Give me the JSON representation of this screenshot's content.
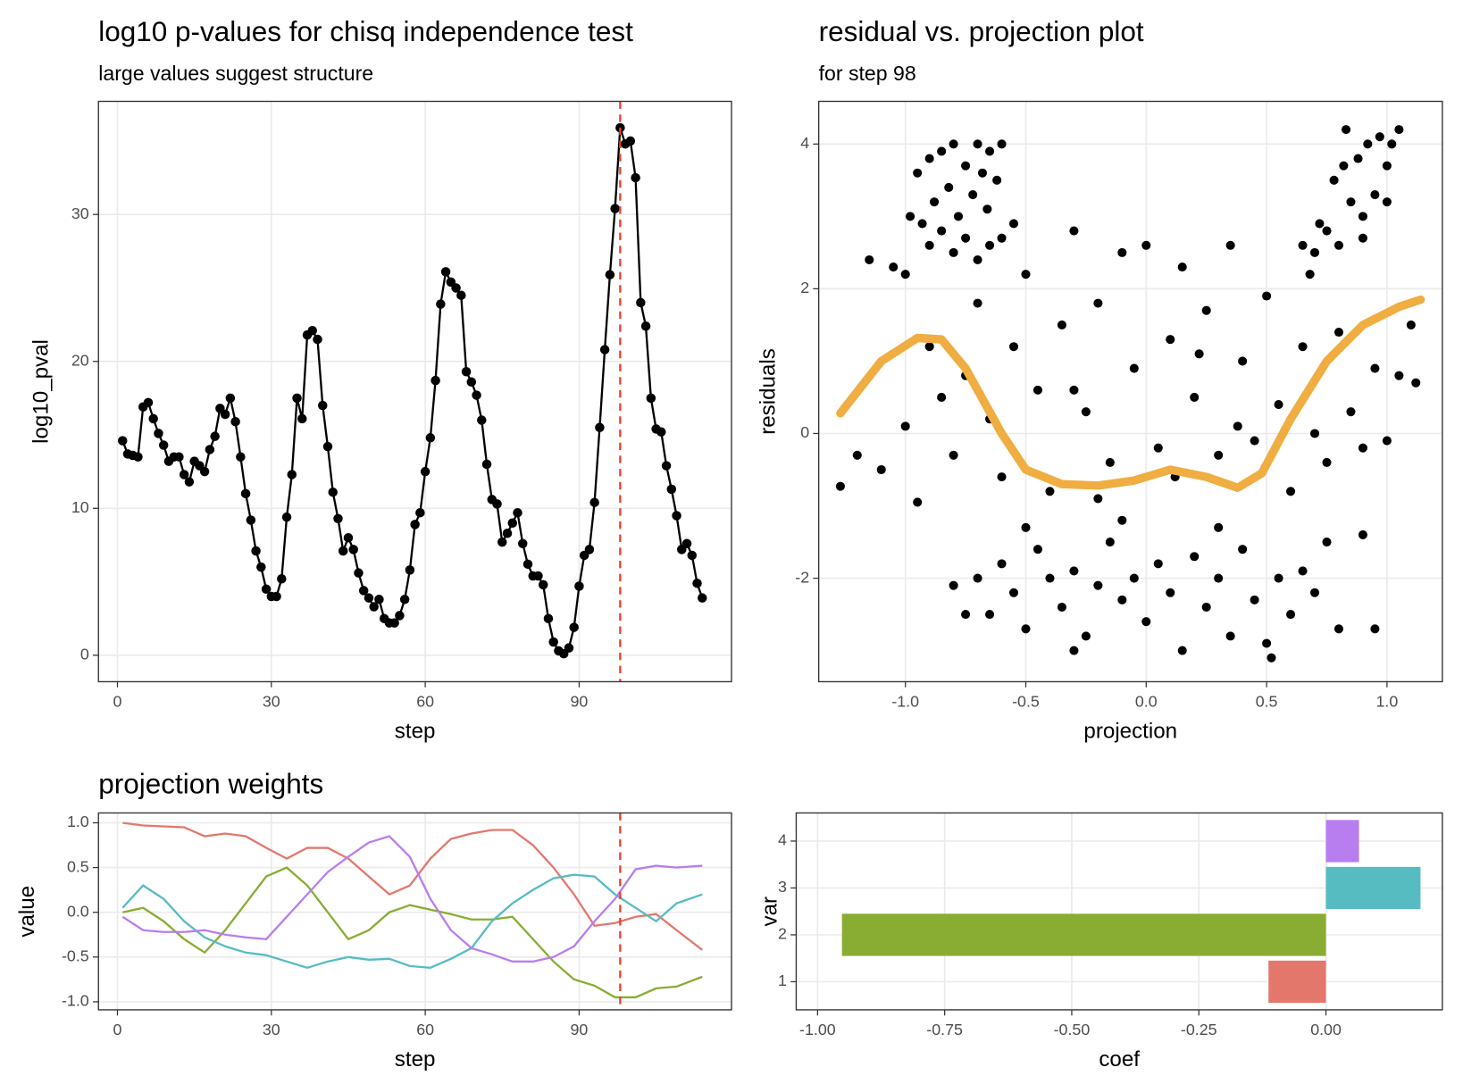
{
  "chart_data": [
    {
      "type": "line",
      "title": "log10 p-values for chisq independence test",
      "subtitle": "large values suggest structure",
      "x_label": "step",
      "y_label": "log10_pval",
      "color": "#000000",
      "markers": true,
      "grid": true,
      "vline": 98,
      "vline_color": "#e8412c",
      "x": [
        1,
        2,
        3,
        4,
        5,
        6,
        7,
        8,
        9,
        10,
        11,
        12,
        13,
        14,
        15,
        16,
        17,
        18,
        19,
        20,
        21,
        22,
        23,
        24,
        25,
        26,
        27,
        28,
        29,
        30,
        31,
        32,
        33,
        34,
        35,
        36,
        37,
        38,
        39,
        40,
        41,
        42,
        43,
        44,
        45,
        46,
        47,
        48,
        49,
        50,
        51,
        52,
        53,
        54,
        55,
        56,
        57,
        58,
        59,
        60,
        61,
        62,
        63,
        64,
        65,
        66,
        67,
        68,
        69,
        70,
        71,
        72,
        73,
        74,
        75,
        76,
        77,
        78,
        79,
        80,
        81,
        82,
        83,
        84,
        85,
        86,
        87,
        88,
        89,
        90,
        91,
        92,
        93,
        94,
        95,
        96,
        97,
        98,
        99,
        100,
        101,
        102,
        103,
        104,
        105,
        106,
        107,
        108,
        109,
        110,
        111,
        112,
        113,
        114
      ],
      "values": [
        14.6,
        13.7,
        13.6,
        13.5,
        16.9,
        17.2,
        16.1,
        15.1,
        14.3,
        13.2,
        13.5,
        13.5,
        12.3,
        11.8,
        13.2,
        12.9,
        12.5,
        14.0,
        14.9,
        16.8,
        16.4,
        17.5,
        15.9,
        13.5,
        11.0,
        9.2,
        7.1,
        6.0,
        4.5,
        4.0,
        4.0,
        5.2,
        9.4,
        12.3,
        17.5,
        16.1,
        21.8,
        22.1,
        21.5,
        17.0,
        14.2,
        11.1,
        9.3,
        7.1,
        8.0,
        7.2,
        5.6,
        4.4,
        3.9,
        3.3,
        3.8,
        2.5,
        2.2,
        2.2,
        2.7,
        3.8,
        5.8,
        8.9,
        9.7,
        12.5,
        14.8,
        18.7,
        23.9,
        26.1,
        25.4,
        25.0,
        24.5,
        19.3,
        18.6,
        17.7,
        16.0,
        13.0,
        10.6,
        10.3,
        7.7,
        8.3,
        9.0,
        9.7,
        7.6,
        6.2,
        5.4,
        5.4,
        4.8,
        2.5,
        0.9,
        0.3,
        0.1,
        0.5,
        1.9,
        4.7,
        6.8,
        7.2,
        10.4,
        15.5,
        20.8,
        25.9,
        30.4,
        35.9,
        34.8,
        35.0,
        32.5,
        24.0,
        22.4,
        17.5,
        15.4,
        15.2,
        12.9,
        11.3,
        9.5,
        7.2,
        7.6,
        6.8,
        4.9,
        3.9
      ],
      "xlim": [
        -3.7,
        119.7
      ],
      "ylim": [
        -1.8,
        37.7
      ],
      "xticks": [
        0,
        30,
        60,
        90
      ],
      "yticks": [
        0,
        10,
        20,
        30
      ]
    },
    {
      "type": "scatter",
      "title": "residual vs. projection plot",
      "subtitle": "for step 98",
      "x_label": "projection",
      "y_label": "residuals",
      "color": "#000000",
      "grid": true,
      "points": {
        "x": [
          -0.95,
          -0.9,
          -0.85,
          -0.8,
          -0.75,
          -0.7,
          -0.65,
          -0.6,
          -0.88,
          -0.82,
          -0.78,
          -0.72,
          -0.68,
          -0.62,
          -0.9,
          -0.85,
          -0.8,
          -0.75,
          -0.7,
          -0.65,
          -0.6,
          -1.0,
          -1.05,
          -1.15,
          -0.98,
          -0.93,
          -0.55,
          -0.66,
          0.7,
          0.75,
          0.8,
          0.85,
          0.9,
          0.95,
          1.0,
          0.72,
          0.78,
          0.82,
          0.88,
          0.92,
          0.97,
          1.02,
          1.05,
          0.83,
          1.0,
          0.9,
          0.65,
          0.68,
          -1.27,
          -1.2,
          -1.1,
          -1.0,
          -0.95,
          -0.9,
          -0.85,
          -0.8,
          -0.7,
          -0.65,
          -0.6,
          -0.55,
          -0.5,
          -0.45,
          -0.4,
          -0.35,
          -0.3,
          -0.25,
          -0.2,
          -0.15,
          -0.1,
          -0.05,
          0.0,
          0.05,
          0.1,
          0.15,
          0.2,
          0.25,
          0.3,
          0.35,
          0.4,
          0.45,
          0.5,
          0.55,
          0.6,
          0.65,
          0.7,
          0.75,
          0.8,
          0.85,
          0.9,
          0.95,
          1.0,
          1.05,
          1.1,
          1.12,
          -0.2,
          0.12,
          0.38,
          -0.75,
          -0.3,
          0.22,
          -0.7,
          -0.65,
          -0.6,
          -0.55,
          -0.5,
          -0.45,
          -0.4,
          -0.35,
          -0.3,
          -0.25,
          -0.2,
          -0.15,
          -0.1,
          -0.05,
          0.0,
          0.05,
          0.1,
          0.15,
          0.2,
          0.25,
          0.3,
          0.35,
          0.4,
          0.45,
          0.5,
          0.55,
          0.6,
          0.65,
          0.7,
          0.75,
          0.8,
          0.9,
          0.95,
          -0.8,
          -0.75,
          -0.3,
          0.52,
          -0.1,
          0.3,
          -0.5
        ],
        "y": [
          3.6,
          3.8,
          3.9,
          4.0,
          3.7,
          4.0,
          3.9,
          4.0,
          3.2,
          3.4,
          3.0,
          3.3,
          3.6,
          3.5,
          2.6,
          2.8,
          2.5,
          2.7,
          2.4,
          2.6,
          2.7,
          2.2,
          2.3,
          2.4,
          3.0,
          2.9,
          2.9,
          3.1,
          2.5,
          2.8,
          2.6,
          3.2,
          3.0,
          3.3,
          3.2,
          2.9,
          3.5,
          3.7,
          3.8,
          4.0,
          4.1,
          4.0,
          4.2,
          4.2,
          3.7,
          2.7,
          2.6,
          2.2,
          -0.73,
          -0.3,
          -0.5,
          0.1,
          -0.95,
          1.2,
          0.5,
          -0.3,
          1.8,
          0.2,
          -0.6,
          1.2,
          2.2,
          0.6,
          -0.8,
          1.5,
          2.8,
          0.3,
          1.8,
          -0.4,
          2.5,
          0.9,
          2.6,
          -0.2,
          1.3,
          2.3,
          0.5,
          1.7,
          -0.3,
          2.6,
          1.0,
          -0.1,
          1.9,
          0.4,
          -0.8,
          1.2,
          0.0,
          -0.4,
          1.4,
          0.3,
          -0.2,
          0.9,
          -0.1,
          0.8,
          1.5,
          0.7,
          -0.9,
          -0.6,
          0.1,
          0.8,
          0.6,
          1.1,
          -2.0,
          -2.5,
          -1.8,
          -2.2,
          -2.7,
          -1.6,
          -2.0,
          -2.4,
          -1.9,
          -2.8,
          -2.1,
          -1.5,
          -2.3,
          -2.0,
          -2.6,
          -1.8,
          -2.2,
          -3.0,
          -1.7,
          -2.4,
          -2.0,
          -2.8,
          -1.6,
          -2.3,
          -2.9,
          -2.0,
          -2.5,
          -1.9,
          -2.2,
          -1.5,
          -2.7,
          -1.4,
          -2.7,
          -2.1,
          -2.5,
          -3.0,
          -3.1,
          -1.2,
          -1.3,
          -1.3
        ]
      },
      "smooth": {
        "color": "#f0ad41",
        "x": [
          -1.27,
          -1.1,
          -0.95,
          -0.85,
          -0.75,
          -0.6,
          -0.5,
          -0.35,
          -0.2,
          -0.05,
          0.1,
          0.25,
          0.38,
          0.48,
          0.6,
          0.75,
          0.9,
          1.05,
          1.14
        ],
        "y": [
          0.28,
          1.0,
          1.32,
          1.3,
          0.9,
          0.0,
          -0.5,
          -0.7,
          -0.72,
          -0.65,
          -0.5,
          -0.6,
          -0.75,
          -0.55,
          0.2,
          1.0,
          1.5,
          1.75,
          1.85
        ]
      },
      "xlim": [
        -1.36,
        1.23
      ],
      "ylim": [
        -3.43,
        4.59
      ],
      "xticks": [
        {
          "value": -1,
          "label": "-1.0"
        },
        {
          "value": -0.5,
          "label": "-0.5"
        },
        {
          "value": 0,
          "label": "0.0"
        },
        {
          "value": 0.5,
          "label": "0.5"
        },
        {
          "value": 1,
          "label": "1.0"
        }
      ],
      "yticks": [
        -2,
        0,
        2,
        4
      ]
    },
    {
      "type": "line",
      "title": "projection weights",
      "x_label": "step",
      "y_label": "value",
      "markers": false,
      "grid": true,
      "vline": 98,
      "vline_color": "#e8412c",
      "x": [
        1,
        5,
        9,
        13,
        17,
        21,
        25,
        29,
        33,
        37,
        41,
        45,
        49,
        53,
        57,
        61,
        65,
        69,
        73,
        77,
        81,
        85,
        89,
        93,
        97,
        101,
        105,
        109,
        114
      ],
      "series": [
        {
          "color": "#e4776c",
          "values": [
            1.0,
            0.97,
            0.96,
            0.95,
            0.85,
            0.88,
            0.85,
            0.72,
            0.6,
            0.72,
            0.72,
            0.6,
            0.4,
            0.2,
            0.3,
            0.6,
            0.82,
            0.88,
            0.92,
            0.92,
            0.75,
            0.5,
            0.2,
            -0.15,
            -0.12,
            -0.05,
            -0.02,
            -0.2,
            -0.42
          ]
        },
        {
          "color": "#88ad32",
          "values": [
            0.0,
            0.05,
            -0.1,
            -0.3,
            -0.45,
            -0.2,
            0.1,
            0.4,
            0.5,
            0.3,
            0.0,
            -0.3,
            -0.2,
            0.0,
            0.08,
            0.03,
            -0.02,
            -0.08,
            -0.08,
            -0.05,
            -0.3,
            -0.55,
            -0.75,
            -0.82,
            -0.95,
            -0.95,
            -0.85,
            -0.83,
            -0.72
          ]
        },
        {
          "color": "#56bcc2",
          "values": [
            0.05,
            0.3,
            0.15,
            -0.1,
            -0.28,
            -0.38,
            -0.45,
            -0.48,
            -0.55,
            -0.62,
            -0.55,
            -0.5,
            -0.53,
            -0.52,
            -0.6,
            -0.62,
            -0.52,
            -0.4,
            -0.1,
            0.1,
            0.25,
            0.38,
            0.42,
            0.4,
            0.2,
            0.05,
            -0.1,
            0.1,
            0.2
          ]
        },
        {
          "color": "#b87ef0",
          "values": [
            -0.05,
            -0.2,
            -0.22,
            -0.22,
            -0.2,
            -0.25,
            -0.28,
            -0.3,
            -0.05,
            0.2,
            0.45,
            0.62,
            0.78,
            0.85,
            0.62,
            0.15,
            -0.2,
            -0.4,
            -0.47,
            -0.55,
            -0.55,
            -0.5,
            -0.38,
            -0.1,
            0.15,
            0.48,
            0.52,
            0.5,
            0.52
          ]
        }
      ],
      "xlim": [
        -3.7,
        119.7
      ],
      "ylim": [
        -1.09,
        1.11
      ],
      "xticks": [
        0,
        30,
        60,
        90
      ],
      "yticks": [
        {
          "value": -1,
          "label": "-1.0"
        },
        {
          "value": -0.5,
          "label": "-0.5"
        },
        {
          "value": 0,
          "label": "0.0"
        },
        {
          "value": 0.5,
          "label": "0.5"
        },
        {
          "value": 1,
          "label": "1.0"
        }
      ]
    },
    {
      "type": "bar",
      "orientation": "horizontal",
      "x_label": "coef",
      "y_label": "var",
      "grid": true,
      "categories": [
        "1",
        "2",
        "3",
        "4"
      ],
      "values": [
        -0.113,
        -0.952,
        0.186,
        0.065
      ],
      "colors": [
        "#e4776c",
        "#88ad32",
        "#56bcc2",
        "#b87ef0"
      ],
      "xlim": [
        -1.042,
        0.229
      ],
      "xticks": [
        {
          "value": -1,
          "label": "-1.00"
        },
        {
          "value": -0.75,
          "label": "-0.75"
        },
        {
          "value": -0.5,
          "label": "-0.50"
        },
        {
          "value": -0.25,
          "label": "-0.25"
        },
        {
          "value": 0,
          "label": "0.00"
        }
      ]
    }
  ]
}
